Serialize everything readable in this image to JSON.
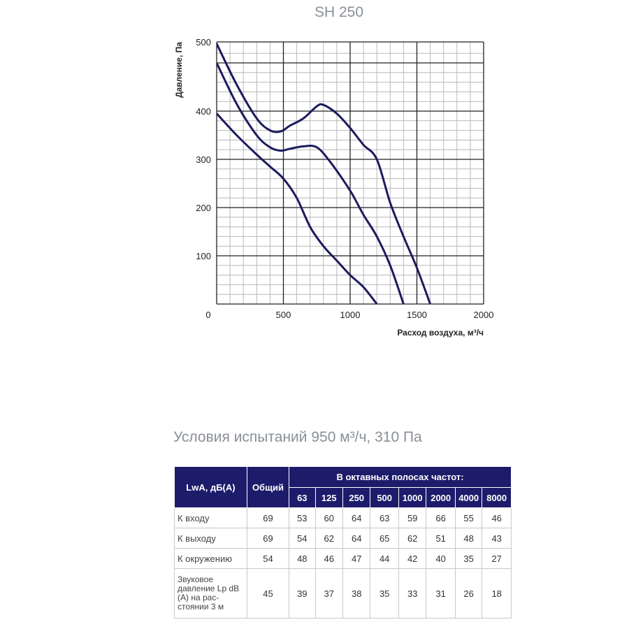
{
  "chart_data": {
    "type": "line",
    "title": "SH 250",
    "xlabel": "Расход воздуха, м³/ч",
    "ylabel": "Давление, Па",
    "xlim": [
      0,
      2000
    ],
    "ylim": [
      0,
      500
    ],
    "x_ticks": [
      "0",
      "500",
      "1000",
      "1500",
      "2000"
    ],
    "y_ticks": [
      "100",
      "200",
      "300",
      "400",
      "500"
    ],
    "grid": true,
    "series": [
      {
        "points": [
          [
            0,
            540
          ],
          [
            150,
            455
          ],
          [
            300,
            385
          ],
          [
            400,
            360
          ],
          [
            480,
            358
          ],
          [
            550,
            370
          ],
          [
            650,
            385
          ],
          [
            750,
            410
          ],
          [
            800,
            413
          ],
          [
            900,
            395
          ],
          [
            1000,
            365
          ],
          [
            1100,
            330
          ],
          [
            1200,
            300
          ],
          [
            1300,
            210
          ],
          [
            1400,
            140
          ],
          [
            1500,
            75
          ],
          [
            1600,
            0
          ]
        ]
      },
      {
        "points": [
          [
            0,
            500
          ],
          [
            150,
            415
          ],
          [
            300,
            350
          ],
          [
            400,
            325
          ],
          [
            480,
            318
          ],
          [
            550,
            322
          ],
          [
            650,
            327
          ],
          [
            750,
            325
          ],
          [
            850,
            295
          ],
          [
            1000,
            235
          ],
          [
            1100,
            185
          ],
          [
            1200,
            140
          ],
          [
            1300,
            80
          ],
          [
            1400,
            0
          ]
        ]
      },
      {
        "points": [
          [
            0,
            395
          ],
          [
            150,
            350
          ],
          [
            300,
            310
          ],
          [
            400,
            285
          ],
          [
            500,
            260
          ],
          [
            600,
            220
          ],
          [
            700,
            160
          ],
          [
            800,
            120
          ],
          [
            900,
            90
          ],
          [
            1000,
            60
          ],
          [
            1100,
            35
          ],
          [
            1200,
            0
          ]
        ]
      }
    ],
    "colors": {
      "line": "#1c1b5e",
      "grid": "#222222",
      "minor_grid": "#b8b8b8"
    }
  },
  "test_conditions": "Условия испытаний 950 м³/ч, 310 Па",
  "table": {
    "head_label": "LwA, дБ(А)",
    "head_total": "Общий",
    "head_band": "В октавных полосах частот:",
    "freqs": [
      "63",
      "125",
      "250",
      "500",
      "1000",
      "2000",
      "4000",
      "8000"
    ],
    "rows": [
      {
        "label": "К входу",
        "total": "69",
        "values": [
          "53",
          "60",
          "64",
          "63",
          "59",
          "66",
          "55",
          "46"
        ]
      },
      {
        "label": "К выходу",
        "total": "69",
        "values": [
          "54",
          "62",
          "64",
          "65",
          "62",
          "51",
          "48",
          "43"
        ]
      },
      {
        "label": "К окружению",
        "total": "54",
        "values": [
          "48",
          "46",
          "47",
          "44",
          "42",
          "40",
          "35",
          "27"
        ]
      },
      {
        "label": "Звуковое давление Lp dB (A) на рас- стоянии 3 м",
        "total": "45",
        "values": [
          "39",
          "37",
          "38",
          "35",
          "33",
          "31",
          "26",
          "18"
        ]
      }
    ],
    "colors": {
      "header_bg": "#1d1c6b",
      "header_text": "#ffffff",
      "border": "#c9c9c9"
    }
  }
}
